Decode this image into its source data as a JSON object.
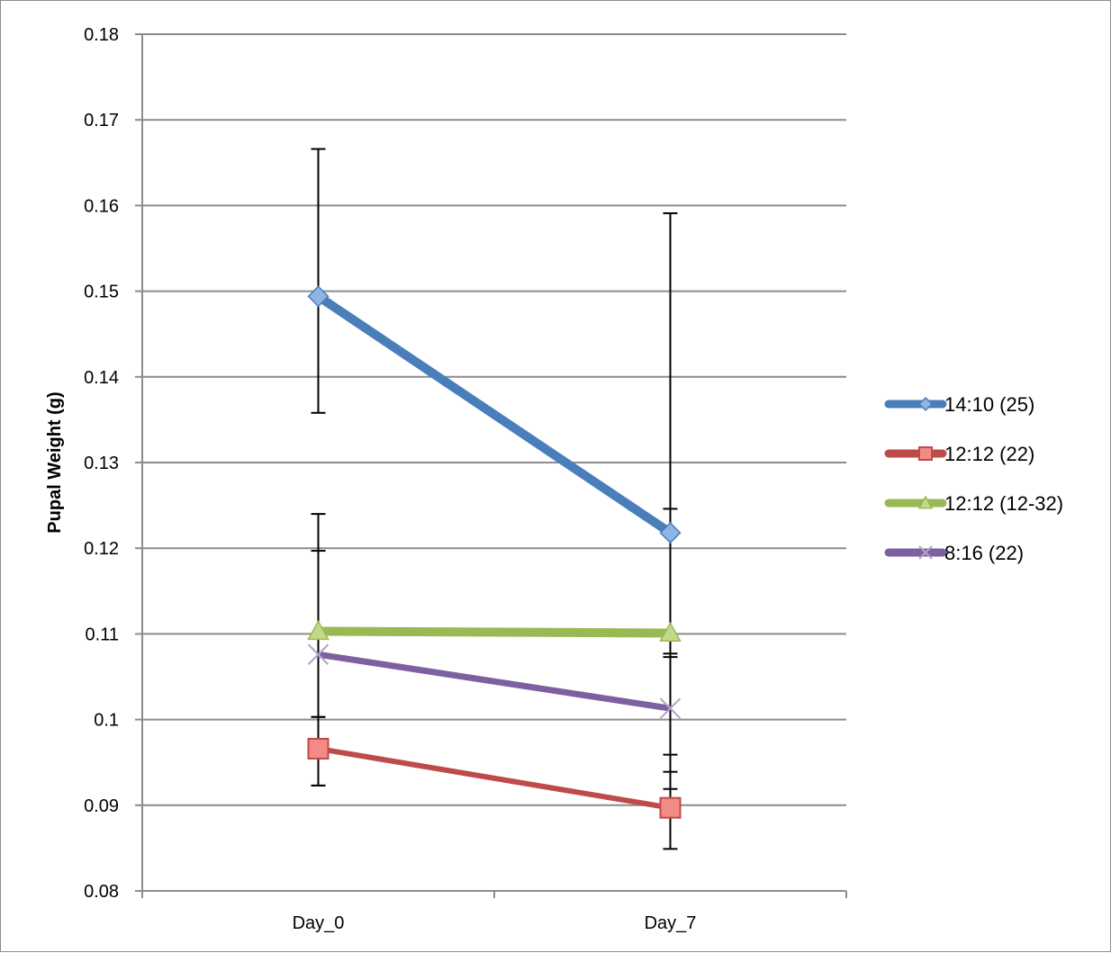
{
  "chart_data": {
    "type": "line",
    "title": "",
    "xlabel": "",
    "ylabel": "Pupal Weight (g)",
    "categories": [
      "Day_0",
      "Day_7"
    ],
    "ylim": [
      0.08,
      0.18
    ],
    "yticks": [
      "0.08",
      "0.09",
      "0.1",
      "0.11",
      "0.12",
      "0.13",
      "0.14",
      "0.15",
      "0.16",
      "0.17",
      "0.18"
    ],
    "grid": true,
    "legend": "right",
    "series": [
      {
        "name": "14:10 (25)",
        "color": "#4a7ebb",
        "marker": "diamond",
        "values": [
          0.1494,
          0.1218
        ],
        "err_low": [
          0.1358,
          0.1077
        ],
        "err_high": [
          0.1666,
          0.1591
        ]
      },
      {
        "name": "12:12 (22)",
        "color": "#be4b48",
        "marker": "square",
        "values": [
          0.0966,
          0.0897
        ],
        "err_low": [
          0.0923,
          0.0849
        ],
        "err_high": [
          0.1003,
          0.0939
        ]
      },
      {
        "name": "12:12 (12-32)",
        "color": "#98b954",
        "marker": "triangle",
        "values": [
          0.1103,
          0.1101
        ],
        "err_low": [
          0.1003,
          0.0959
        ],
        "err_high": [
          0.124,
          0.1246
        ]
      },
      {
        "name": "8:16 (22)",
        "color": "#7d60a0",
        "marker": "x",
        "values": [
          0.1076,
          0.1013
        ],
        "err_low": [
          0.0923,
          0.0919
        ],
        "err_high": [
          0.1197,
          0.1073
        ]
      }
    ]
  }
}
